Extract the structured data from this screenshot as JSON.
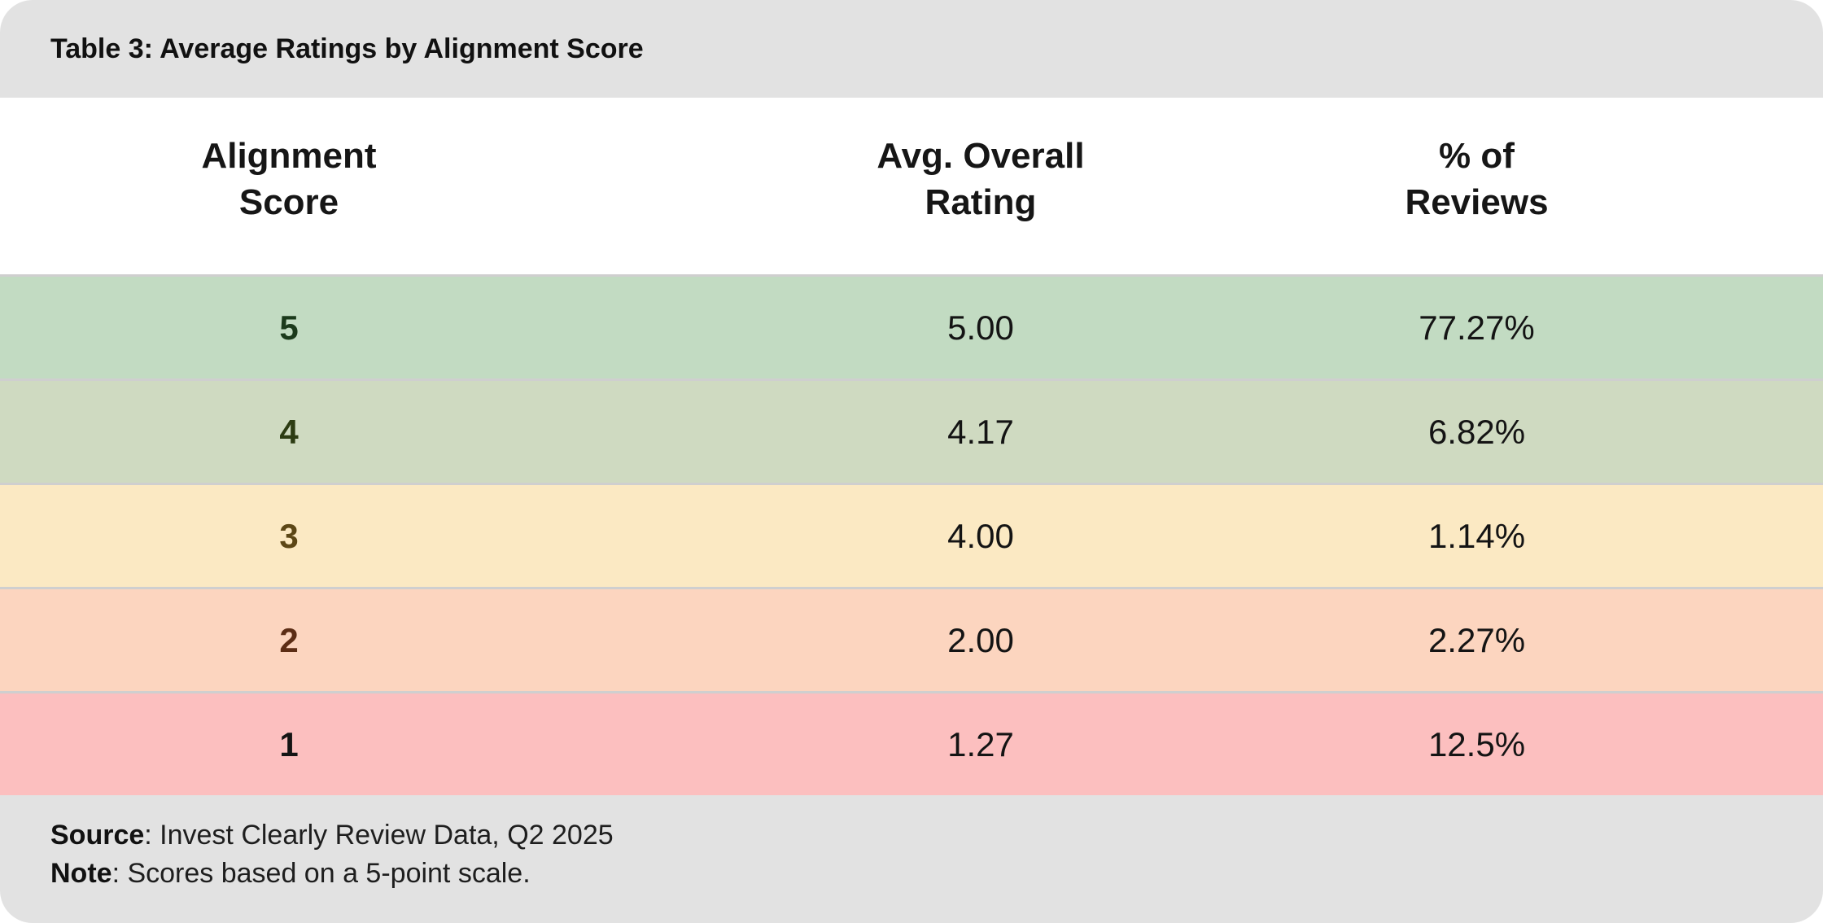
{
  "title": "Table 3: Average Ratings by Alignment Score",
  "table": {
    "headers": [
      "Alignment\nScore",
      "Avg. Overall\nRating",
      "% of\nReviews"
    ],
    "rows": [
      {
        "score": "5",
        "rating": "5.00",
        "pct": "77.27%",
        "bg": "#c2dbc2",
        "score_color": "#1b3a1b"
      },
      {
        "score": "4",
        "rating": "4.17",
        "pct": "6.82%",
        "bg": "#cfdac1",
        "score_color": "#2d3c13"
      },
      {
        "score": "3",
        "rating": "4.00",
        "pct": "1.14%",
        "bg": "#fbe9c3",
        "score_color": "#5c4716"
      },
      {
        "score": "2",
        "rating": "2.00",
        "pct": "2.27%",
        "bg": "#fcd5bf",
        "score_color": "#5c2d15"
      },
      {
        "score": "1",
        "rating": "1.27",
        "pct": "12.5%",
        "bg": "#fcbfbf",
        "score_color": "#141414"
      }
    ]
  },
  "footer": {
    "source_label": "Source",
    "source_text": ": Invest Clearly Review Data, Q2 2025",
    "note_label": "Note",
    "note_text": ": Scores based on a 5-point scale."
  },
  "colors": {
    "band_gray": "#e2e2e2",
    "divider": "#cfcfcf"
  },
  "chart_data": {
    "type": "table",
    "title": "Table 3: Average Ratings by Alignment Score",
    "columns": [
      "Alignment Score",
      "Avg. Overall Rating",
      "% of Reviews"
    ],
    "rows": [
      [
        5,
        5.0,
        77.27
      ],
      [
        4,
        4.17,
        6.82
      ],
      [
        3,
        4.0,
        1.14
      ],
      [
        2,
        2.0,
        2.27
      ],
      [
        1,
        1.27,
        12.5
      ]
    ],
    "pct_unit": "%",
    "row_colors": [
      "#c2dbc2",
      "#cfdac1",
      "#fbe9c3",
      "#fcd5bf",
      "#fcbfbf"
    ],
    "source": "Invest Clearly Review Data, Q2 2025",
    "note": "Scores based on a 5-point scale."
  }
}
